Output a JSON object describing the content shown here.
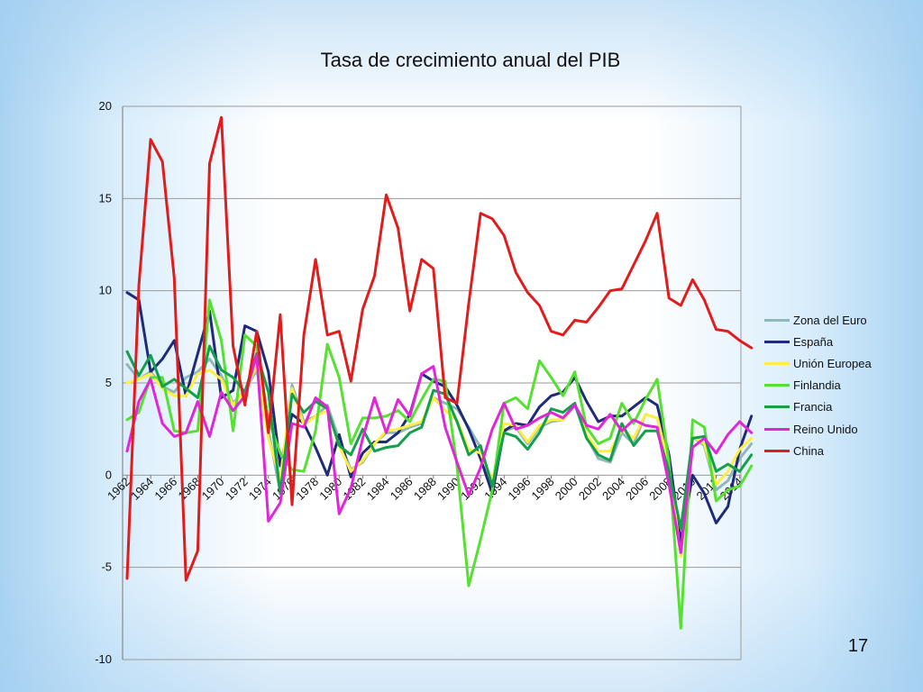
{
  "slide": {
    "number": "17"
  },
  "chart_data": {
    "type": "line",
    "title": "Tasa de crecimiento anual del PIB",
    "xlabel": "",
    "ylabel": "",
    "ylim": [
      -10,
      20
    ],
    "yticks": [
      20,
      15,
      10,
      5,
      0,
      -5,
      -10
    ],
    "x": [
      1962,
      1963,
      1964,
      1965,
      1966,
      1967,
      1968,
      1969,
      1970,
      1971,
      1972,
      1973,
      1974,
      1975,
      1976,
      1977,
      1978,
      1979,
      1980,
      1981,
      1982,
      1983,
      1984,
      1985,
      1986,
      1987,
      1988,
      1989,
      1990,
      1991,
      1992,
      1993,
      1994,
      1995,
      1996,
      1997,
      1998,
      1999,
      2000,
      2001,
      2002,
      2003,
      2004,
      2005,
      2006,
      2007,
      2008,
      2009,
      2010,
      2011,
      2012,
      2013,
      2014,
      2015
    ],
    "xtick_labels": [
      "1962",
      "1964",
      "1966",
      "1968",
      "1970",
      "1972",
      "1974",
      "1976",
      "1978",
      "1980",
      "1982",
      "1984",
      "1986",
      "1988",
      "1990",
      "1992",
      "1994",
      "1996",
      "1998",
      "2000",
      "2002",
      "2004",
      "2006",
      "2008",
      "2010",
      "2012",
      "2014"
    ],
    "grid": true,
    "legend_position": "right",
    "series": [
      {
        "name": "Zona del Euro",
        "color": "#8fb8b8",
        "values": [
          6.0,
          5.2,
          5.6,
          4.8,
          4.5,
          5.3,
          5.6,
          6.3,
          5.4,
          3.9,
          4.6,
          5.7,
          2.4,
          -0.9,
          4.9,
          2.9,
          3.2,
          3.8,
          1.9,
          0.3,
          0.7,
          1.7,
          2.3,
          2.3,
          2.6,
          2.8,
          4.2,
          3.9,
          3.6,
          2.6,
          1.5,
          -0.8,
          2.4,
          2.6,
          1.7,
          2.6,
          2.9,
          3.0,
          3.8,
          2.1,
          0.9,
          0.7,
          2.3,
          1.7,
          3.3,
          3.1,
          0.5,
          -4.4,
          2.1,
          1.6,
          -0.8,
          -0.3,
          0.9,
          1.7
        ]
      },
      {
        "name": "España",
        "color": "#1f2a78",
        "values": [
          9.9,
          9.5,
          5.6,
          6.3,
          7.3,
          4.3,
          6.6,
          8.9,
          4.2,
          4.6,
          8.1,
          7.8,
          5.6,
          0.5,
          3.3,
          2.8,
          1.5,
          0.0,
          2.2,
          -0.1,
          1.2,
          1.8,
          1.8,
          2.3,
          3.3,
          5.5,
          5.1,
          4.8,
          3.8,
          2.5,
          0.9,
          -1.0,
          2.4,
          2.8,
          2.7,
          3.7,
          4.3,
          4.5,
          5.3,
          4.0,
          2.9,
          3.2,
          3.2,
          3.7,
          4.2,
          3.8,
          1.1,
          -3.6,
          0.0,
          -1.0,
          -2.6,
          -1.7,
          1.4,
          3.2
        ]
      },
      {
        "name": "Unión Europea",
        "color": "#ffee44",
        "values": [
          5.0,
          5.2,
          5.5,
          4.7,
          4.3,
          4.3,
          5.5,
          5.7,
          5.2,
          3.8,
          4.6,
          5.9,
          2.0,
          -0.2,
          4.7,
          2.7,
          3.2,
          3.5,
          1.6,
          0.2,
          0.8,
          1.7,
          2.4,
          2.5,
          2.7,
          2.9,
          4.2,
          3.5,
          3.0,
          1.4,
          1.2,
          -0.3,
          2.8,
          2.7,
          1.8,
          2.7,
          3.0,
          3.0,
          3.9,
          2.2,
          1.3,
          1.3,
          2.5,
          2.0,
          3.3,
          3.1,
          0.5,
          -4.4,
          2.1,
          1.7,
          -0.5,
          0.2,
          1.4,
          2.0
        ]
      },
      {
        "name": "Finlandia",
        "color": "#55e032",
        "values": [
          3.0,
          3.4,
          5.3,
          5.3,
          2.4,
          2.3,
          2.4,
          9.5,
          7.3,
          2.4,
          7.6,
          7.0,
          3.0,
          1.2,
          0.3,
          0.2,
          2.4,
          7.1,
          5.3,
          1.7,
          3.1,
          3.1,
          3.2,
          3.5,
          2.9,
          4.1,
          5.2,
          5.1,
          0.5,
          -6.0,
          -3.5,
          -0.8,
          3.9,
          4.2,
          3.6,
          6.2,
          5.3,
          4.3,
          5.6,
          2.6,
          1.7,
          2.0,
          3.9,
          2.8,
          4.1,
          5.2,
          0.7,
          -8.3,
          3.0,
          2.6,
          -1.4,
          -0.8,
          -0.6,
          0.5
        ]
      },
      {
        "name": "Francia",
        "color": "#14a04a",
        "values": [
          6.7,
          5.4,
          6.5,
          4.8,
          5.2,
          4.7,
          4.2,
          7.0,
          5.7,
          5.3,
          4.5,
          6.6,
          4.5,
          -1.0,
          4.4,
          3.4,
          4.0,
          3.6,
          1.6,
          1.1,
          2.5,
          1.3,
          1.5,
          1.6,
          2.3,
          2.6,
          4.6,
          4.4,
          2.9,
          1.1,
          1.6,
          -0.6,
          2.3,
          2.1,
          1.4,
          2.3,
          3.6,
          3.4,
          3.9,
          2.0,
          1.1,
          0.8,
          2.8,
          1.6,
          2.4,
          2.4,
          0.2,
          -2.9,
          2.0,
          2.1,
          0.2,
          0.6,
          0.2,
          1.1
        ]
      },
      {
        "name": "Reino Unido",
        "color": "#e026d6",
        "values": [
          1.3,
          4.0,
          5.2,
          2.8,
          2.1,
          2.3,
          4.0,
          2.1,
          4.5,
          3.5,
          4.3,
          6.5,
          -2.5,
          -1.5,
          2.8,
          2.6,
          4.2,
          3.7,
          -2.1,
          -0.7,
          2.0,
          4.2,
          2.3,
          4.1,
          3.2,
          5.5,
          5.9,
          2.6,
          0.7,
          -1.1,
          0.4,
          2.5,
          3.9,
          2.5,
          2.7,
          3.1,
          3.4,
          3.1,
          3.8,
          2.7,
          2.5,
          3.3,
          2.4,
          3.0,
          2.7,
          2.6,
          -0.5,
          -4.2,
          1.5,
          2.0,
          1.2,
          2.2,
          2.9,
          2.3
        ]
      },
      {
        "name": "China",
        "color": "#e01c1c",
        "values": [
          -5.6,
          10.3,
          18.2,
          17.0,
          10.7,
          -5.7,
          -4.1,
          16.9,
          19.4,
          7.0,
          3.8,
          7.8,
          2.3,
          8.7,
          -1.6,
          7.6,
          11.7,
          7.6,
          7.8,
          5.1,
          9.0,
          10.8,
          15.2,
          13.4,
          8.9,
          11.7,
          11.2,
          4.2,
          3.9,
          9.3,
          14.2,
          13.9,
          13.0,
          11.0,
          9.9,
          9.2,
          7.8,
          7.6,
          8.4,
          8.3,
          9.1,
          10.0,
          10.1,
          11.4,
          12.7,
          14.2,
          9.6,
          9.2,
          10.6,
          9.5,
          7.9,
          7.8,
          7.3,
          6.9
        ]
      }
    ]
  }
}
